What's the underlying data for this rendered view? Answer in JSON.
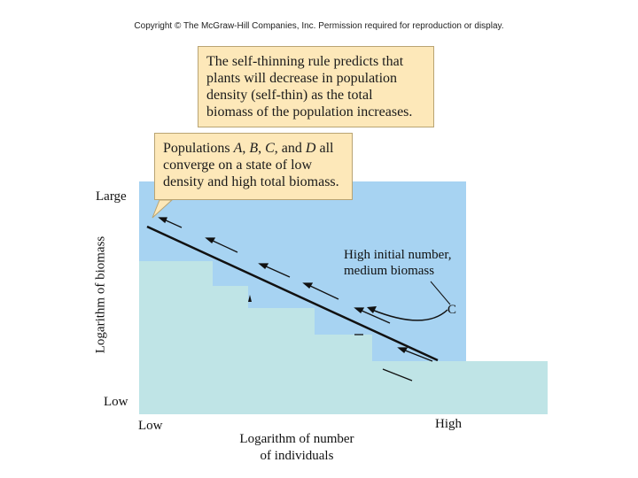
{
  "copyright": "Copyright © The McGraw-Hill Companies, Inc. Permission required for reproduction or display.",
  "callout_rule": {
    "lines": [
      "The self-thinning rule predicts that",
      "plants will decrease in population",
      "density (self-thin) as the total",
      "biomass of the population increases."
    ]
  },
  "callout_converge": {
    "lines": [
      "Populations A, B, C, and D all",
      "converge on a state of low",
      "density and high total biomass."
    ]
  },
  "y_axis": {
    "title": "Logarithm of biomass",
    "top_label": "Large",
    "bottom_label": "Low"
  },
  "x_axis": {
    "left_label": "Low",
    "right_label": "High",
    "title_lines": [
      "Logarithm of number",
      "of individuals"
    ]
  },
  "annotation": {
    "lines": [
      "High initial number,",
      "medium biomass"
    ],
    "population_label": "C"
  },
  "colors": {
    "panel_blue": "#a7d3f2",
    "occluder": "#bfe4e6",
    "callout_fill": "#fde8b9",
    "line": "#111111"
  }
}
